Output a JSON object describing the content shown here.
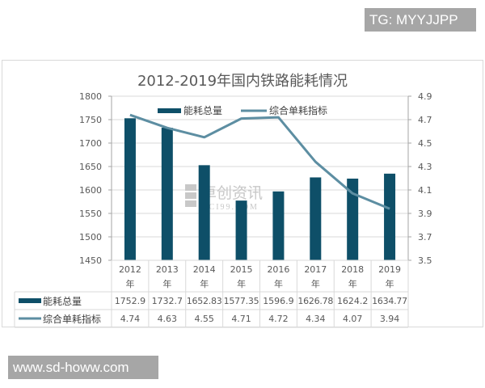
{
  "badges": {
    "top_right": "TG: MYYJJPP",
    "bottom_left": "www.sd-howw.com"
  },
  "watermark": {
    "cn": "卓创资讯",
    "en": "SCI99.COM"
  },
  "colors": {
    "bar": "#0e4f68",
    "line": "#5d8ea2",
    "grid": "#d9d9d9",
    "axis_text": "#595959"
  },
  "chart_data": {
    "type": "bar+line",
    "title": "2012-2019年国内铁路能耗情况",
    "categories": [
      "2012年",
      "2013年",
      "2014年",
      "2015年",
      "2016年",
      "2017年",
      "2018年",
      "2019年"
    ],
    "category_lines": [
      [
        "2012",
        "年"
      ],
      [
        "2013",
        "年"
      ],
      [
        "2014",
        "年"
      ],
      [
        "2015",
        "年"
      ],
      [
        "2016",
        "年"
      ],
      [
        "2017",
        "年"
      ],
      [
        "2018",
        "年"
      ],
      [
        "2019",
        "年"
      ]
    ],
    "series": [
      {
        "name": "能耗总量",
        "type": "bar",
        "axis": "left",
        "values": [
          1752.9,
          1732.7,
          1652.83,
          1577.35,
          1596.9,
          1626.78,
          1624.2,
          1634.77
        ],
        "labels": [
          "1752.9",
          "1732.7",
          "1652.83",
          "1577.35",
          "1596.9",
          "1626.78",
          "1624.2",
          "1634.77"
        ]
      },
      {
        "name": "综合单耗指标",
        "type": "line",
        "axis": "right",
        "values": [
          4.74,
          4.63,
          4.55,
          4.71,
          4.72,
          4.34,
          4.07,
          3.94
        ],
        "labels": [
          "4.74",
          "4.63",
          "4.55",
          "4.71",
          "4.72",
          "4.34",
          "4.07",
          "3.94"
        ]
      }
    ],
    "left_axis": {
      "ylim": [
        1450,
        1800
      ],
      "ticks": [
        "1800",
        "1750",
        "1700",
        "1650",
        "1600",
        "1550",
        "1500",
        "1450"
      ]
    },
    "right_axis": {
      "ylim": [
        3.5,
        4.9
      ],
      "ticks": [
        "4.9",
        "4.7",
        "4.5",
        "4.3",
        "4.1",
        "3.9",
        "3.7",
        "3.5"
      ]
    },
    "xlabel": "",
    "ylabel": "",
    "grid": true,
    "legend_position": "top",
    "data_table": true
  }
}
